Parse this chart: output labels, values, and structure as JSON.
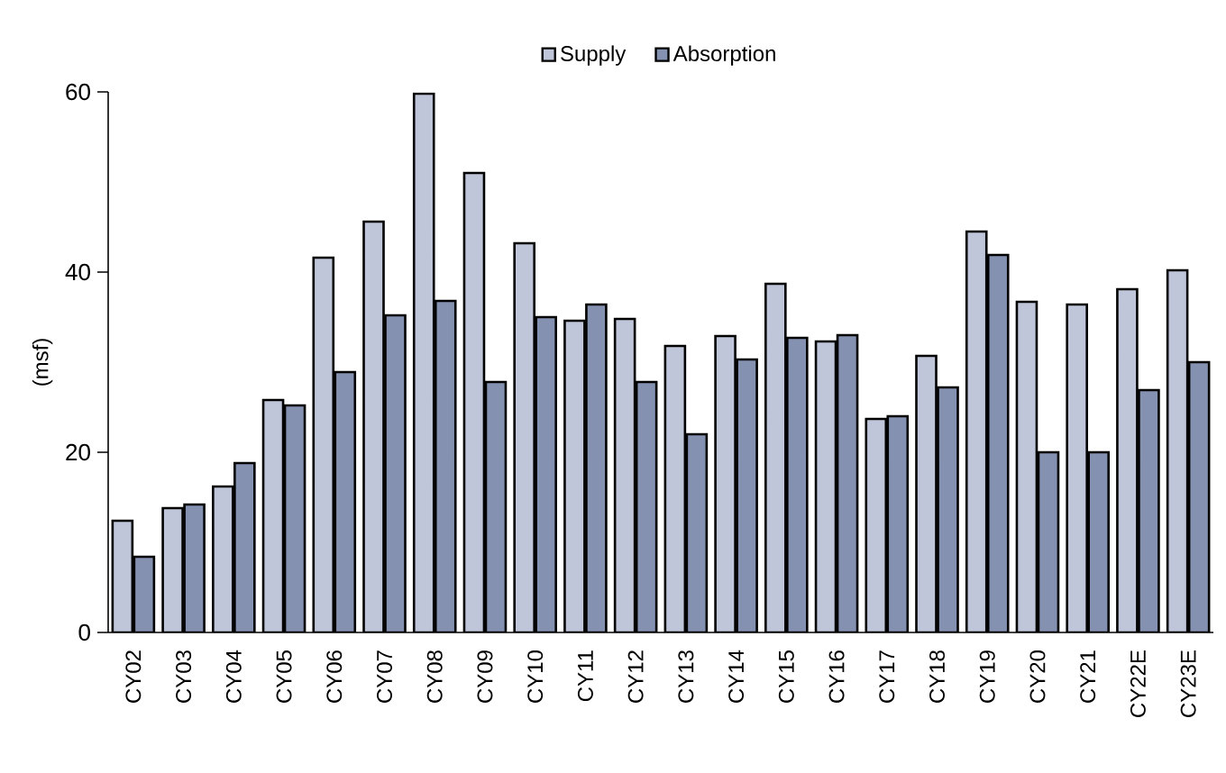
{
  "chart_data": {
    "type": "bar",
    "ylabel": "(msf)",
    "categories": [
      "CY02",
      "CY03",
      "CY04",
      "CY05",
      "CY06",
      "CY07",
      "CY08",
      "CY09",
      "CY10",
      "CY11",
      "CY12",
      "CY13",
      "CY14",
      "CY15",
      "CY16",
      "CY17",
      "CY18",
      "CY19",
      "CY20",
      "CY21",
      "CY22E",
      "CY23E"
    ],
    "series": [
      {
        "name": "Supply",
        "color": "#c0c6d9",
        "values": [
          12.4,
          13.8,
          16.2,
          25.8,
          41.6,
          45.6,
          59.8,
          51.0,
          43.2,
          34.6,
          34.8,
          31.8,
          32.9,
          38.7,
          32.3,
          23.7,
          30.7,
          44.5,
          36.7,
          36.4,
          38.1,
          40.2
        ]
      },
      {
        "name": "Absorption",
        "color": "#8591b0",
        "values": [
          8.4,
          14.2,
          18.8,
          25.2,
          28.9,
          35.2,
          36.8,
          27.8,
          35.0,
          36.4,
          27.8,
          22.0,
          30.3,
          32.7,
          33.0,
          24.0,
          27.2,
          41.9,
          20.0,
          20.0,
          26.9,
          30.0
        ]
      }
    ],
    "ylim": [
      0,
      60
    ],
    "yticks": [
      0,
      20,
      40,
      60
    ],
    "grid": false,
    "legend": "top"
  }
}
